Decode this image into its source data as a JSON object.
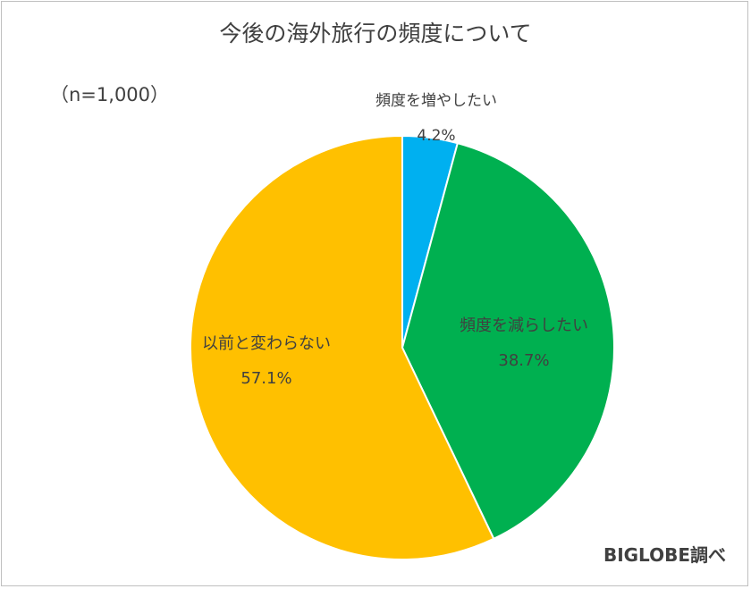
{
  "chart_data": {
    "type": "pie",
    "title": "今後の海外旅行の頻度について",
    "note": "（n=1,000）",
    "source": "BIGLOBE調べ",
    "slices": [
      {
        "label": "頻度を増やしたい",
        "value": 4.2,
        "value_label": "4.2%",
        "color": "#00b0f0"
      },
      {
        "label": "頻度を減らしたい",
        "value": 38.7,
        "value_label": "38.7%",
        "color": "#00b050"
      },
      {
        "label": "以前と変わらない",
        "value": 57.1,
        "value_label": "57.1%",
        "color": "#ffc000"
      }
    ],
    "start": "top",
    "direction": "clockwise"
  }
}
